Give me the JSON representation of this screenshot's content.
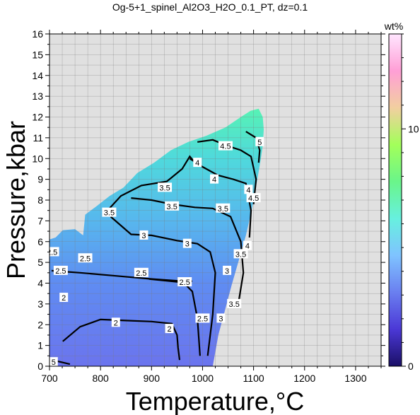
{
  "chart_data": {
    "type": "heatmap",
    "title": "Og-5+1_spinel_Al2O3_H2O_0.1_PT, dz=0.1",
    "xlabel": "Temperature,°C",
    "ylabel": "Pressure,kbar",
    "xlim": [
      700,
      1350
    ],
    "ylim": [
      0,
      16
    ],
    "x_ticks": [
      "700",
      "800",
      "900",
      "1000",
      "1100",
      "1200",
      "1300"
    ],
    "y_ticks": [
      "0",
      "1",
      "2",
      "3",
      "4",
      "5",
      "6",
      "7",
      "8",
      "9",
      "10",
      "11",
      "12",
      "13",
      "14",
      "15",
      "16"
    ],
    "grid": true,
    "background_color": "#e0e0e0",
    "colorbar": {
      "label": "wt%",
      "range": [
        0,
        14
      ],
      "ticks": [
        "0",
        "10"
      ],
      "placement": "right",
      "colors": [
        "#1a0f66",
        "#4b38d6",
        "#6a7ff0",
        "#7fc3ff",
        "#67f0df",
        "#6af58a",
        "#a3ff5a",
        "#f2cfa0",
        "#ff9fd6",
        "#ffe6ff"
      ]
    },
    "field": {
      "boundary": [
        [
          700,
          0.0
        ],
        [
          700,
          6.1
        ],
        [
          712,
          6.2
        ],
        [
          726,
          6.55
        ],
        [
          750,
          6.6
        ],
        [
          766,
          6.3
        ],
        [
          770,
          7.3
        ],
        [
          792,
          7.7
        ],
        [
          818,
          8.2
        ],
        [
          845,
          8.6
        ],
        [
          872,
          9.3
        ],
        [
          905,
          9.8
        ],
        [
          938,
          10.4
        ],
        [
          972,
          10.8
        ],
        [
          1008,
          11.1
        ],
        [
          1045,
          11.5
        ],
        [
          1075,
          12.0
        ],
        [
          1094,
          12.3
        ],
        [
          1110,
          12.4
        ],
        [
          1118,
          12.0
        ],
        [
          1120,
          11.4
        ],
        [
          1118,
          10.6
        ],
        [
          1113,
          9.8
        ],
        [
          1106,
          8.8
        ],
        [
          1097,
          7.6
        ],
        [
          1085,
          6.3
        ],
        [
          1071,
          5.1
        ],
        [
          1057,
          3.9
        ],
        [
          1044,
          2.7
        ],
        [
          1031,
          1.5
        ],
        [
          1020,
          0.0
        ]
      ],
      "fill_stops": [
        {
          "p": 0,
          "color": "#6b74ee"
        },
        {
          "p": 4,
          "color": "#5f8cf2"
        },
        {
          "p": 7,
          "color": "#57b7ee"
        },
        {
          "p": 10,
          "color": "#4fd9dc"
        },
        {
          "p": 12.4,
          "color": "#57f2b4"
        }
      ]
    },
    "contours": [
      {
        "level": "2",
        "points": [
          [
            726,
            1.2
          ],
          [
            760,
            1.9
          ],
          [
            800,
            2.25
          ],
          [
            850,
            2.2
          ],
          [
            900,
            2.15
          ],
          [
            940,
            2.05
          ],
          [
            950,
            1.5
          ],
          [
            952,
            0.9
          ],
          [
            955,
            0.3
          ]
        ],
        "labels": [
          [
            728,
            3.3
          ],
          [
            830,
            2.1
          ],
          [
            935,
            1.8
          ]
        ]
      },
      {
        "level": "2.5",
        "points": [
          [
            704,
            4.6
          ],
          [
            760,
            4.5
          ],
          [
            830,
            4.35
          ],
          [
            900,
            4.2
          ],
          [
            960,
            4.1
          ],
          [
            980,
            3.6
          ],
          [
            990,
            2.3
          ],
          [
            995,
            0.5
          ]
        ],
        "labels": [
          [
            705,
            5.5
          ],
          [
            770,
            5.2
          ],
          [
            722,
            4.6
          ],
          [
            880,
            4.5
          ],
          [
            1000,
            2.3
          ]
        ]
      },
      {
        "level": "2.5b",
        "points": [
          [
            895,
            4.2
          ],
          [
            955,
            4.05
          ],
          [
            980,
            4.1
          ]
        ],
        "labels": [
          [
            965,
            4.05
          ]
        ]
      },
      {
        "level": "3",
        "points": [
          [
            820,
            7.2
          ],
          [
            860,
            6.35
          ],
          [
            900,
            6.3
          ],
          [
            950,
            6.05
          ],
          [
            990,
            5.9
          ],
          [
            1015,
            5.5
          ],
          [
            1025,
            4.5
          ],
          [
            1020,
            2.5
          ],
          [
            1010,
            0.5
          ]
        ],
        "labels": [
          [
            885,
            6.3
          ],
          [
            970,
            5.9
          ],
          [
            1048,
            4.6
          ],
          [
            1036,
            2.3
          ]
        ]
      },
      {
        "level": "3.5",
        "points": [
          [
            860,
            8.1
          ],
          [
            900,
            8.0
          ],
          [
            940,
            7.8
          ],
          [
            985,
            7.65
          ],
          [
            1020,
            7.6
          ],
          [
            1055,
            7.2
          ],
          [
            1075,
            6.0
          ],
          [
            1080,
            4.5
          ],
          [
            1070,
            3.0
          ]
        ],
        "labels": [
          [
            940,
            7.7
          ],
          [
            1040,
            7.6
          ],
          [
            1075,
            5.4
          ],
          [
            1062,
            3.0
          ]
        ]
      },
      {
        "level": "3.5b",
        "points": [
          [
            810,
            7.4
          ],
          [
            840,
            8.2
          ],
          [
            880,
            8.7
          ],
          [
            930,
            8.9
          ],
          [
            960,
            9.5
          ],
          [
            975,
            10.1
          ],
          [
            985,
            9.8
          ]
        ],
        "labels": [
          [
            926,
            8.6
          ],
          [
            817,
            7.4
          ]
        ]
      },
      {
        "level": "4",
        "points": [
          [
            975,
            10.0
          ],
          [
            1000,
            9.6
          ],
          [
            1030,
            9.2
          ],
          [
            1060,
            9.0
          ],
          [
            1085,
            8.8
          ],
          [
            1095,
            7.5
          ],
          [
            1092,
            6.2
          ]
        ],
        "labels": [
          [
            990,
            9.8
          ],
          [
            1023,
            9.0
          ],
          [
            1090,
            8.5
          ],
          [
            1088,
            5.8
          ]
        ]
      },
      {
        "level": "4.5",
        "points": [
          [
            990,
            10.8
          ],
          [
            1020,
            10.9
          ],
          [
            1050,
            10.6
          ],
          [
            1075,
            10.4
          ],
          [
            1095,
            10.1
          ],
          [
            1105,
            9.0
          ],
          [
            1100,
            7.8
          ]
        ],
        "labels": [
          [
            1045,
            10.6
          ],
          [
            1100,
            8.1
          ]
        ]
      },
      {
        "level": "5",
        "points": [
          [
            1085,
            11.3
          ],
          [
            1105,
            11.0
          ],
          [
            1112,
            10.4
          ],
          [
            1110,
            9.8
          ]
        ],
        "labels": [
          [
            1112,
            10.8
          ]
        ]
      },
      {
        "level": "5b",
        "points": [
          [
            705,
            0.3
          ],
          [
            740,
            0.1
          ]
        ],
        "labels": [
          [
            708,
            0.2
          ]
        ]
      }
    ]
  }
}
